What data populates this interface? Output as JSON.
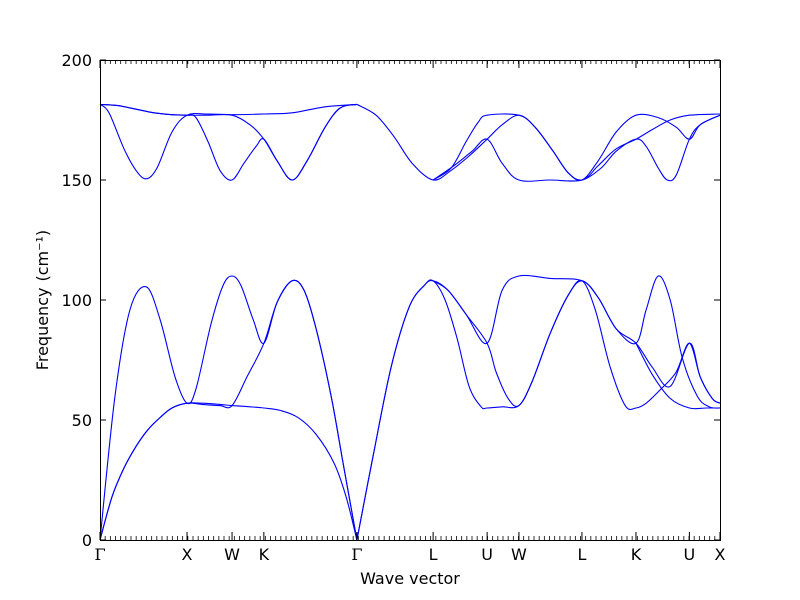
{
  "chart_data": {
    "type": "line",
    "title": "",
    "xlabel": "Wave vector",
    "ylabel": "Frequency",
    "ylabel_unit": "(cm⁻¹)",
    "ylim": [
      0,
      200
    ],
    "yticks": [
      0,
      50,
      100,
      150,
      200
    ],
    "grid": false,
    "line_color": "#0000ff",
    "xlim": [
      0,
      10.33
    ],
    "high_symmetry_points": [
      {
        "label": "Γ",
        "x": 0
      },
      {
        "label": "X",
        "x": 1.45
      },
      {
        "label": "W",
        "x": 2.2
      },
      {
        "label": "K",
        "x": 2.73
      },
      {
        "label": "Γ",
        "x": 4.28
      },
      {
        "label": "L",
        "x": 5.55
      },
      {
        "label": "U",
        "x": 6.45
      },
      {
        "label": "W",
        "x": 6.98
      },
      {
        "label": "L",
        "x": 8.03
      },
      {
        "label": "K",
        "x": 8.93
      },
      {
        "label": "U",
        "x": 9.82
      },
      {
        "label": "X",
        "x": 10.33
      }
    ],
    "series": [
      {
        "points": [
          [
            0,
            0
          ],
          [
            0.2,
            18
          ],
          [
            0.4,
            30
          ],
          [
            0.6,
            39
          ],
          [
            0.8,
            46
          ],
          [
            1.0,
            51
          ],
          [
            1.2,
            55
          ],
          [
            1.45,
            57
          ],
          [
            1.7,
            57
          ],
          [
            2.0,
            56.5
          ],
          [
            2.2,
            56
          ],
          [
            2.5,
            55.5
          ],
          [
            2.73,
            55
          ],
          [
            3.0,
            54
          ],
          [
            3.3,
            51
          ],
          [
            3.6,
            44
          ],
          [
            3.9,
            32
          ],
          [
            4.1,
            18
          ],
          [
            4.28,
            0
          ]
        ]
      },
      {
        "points": [
          [
            0,
            0
          ],
          [
            0.2,
            18
          ],
          [
            0.4,
            30
          ],
          [
            0.6,
            39
          ],
          [
            0.8,
            46
          ],
          [
            1.0,
            51
          ],
          [
            1.2,
            55
          ],
          [
            1.45,
            57
          ],
          [
            1.7,
            56.5
          ],
          [
            2.0,
            56
          ],
          [
            2.2,
            56
          ],
          [
            2.45,
            68
          ],
          [
            2.73,
            82
          ],
          [
            2.95,
            99
          ],
          [
            3.2,
            108
          ],
          [
            3.4,
            104
          ],
          [
            3.6,
            88
          ],
          [
            3.85,
            60
          ],
          [
            4.05,
            32
          ],
          [
            4.28,
            0
          ]
        ]
      },
      {
        "points": [
          [
            0,
            0
          ],
          [
            0.25,
            60
          ],
          [
            0.5,
            96
          ],
          [
            0.77,
            105.5
          ],
          [
            1.0,
            92
          ],
          [
            1.25,
            68
          ],
          [
            1.45,
            57
          ],
          [
            1.6,
            63
          ],
          [
            1.85,
            90
          ],
          [
            2.05,
            106
          ],
          [
            2.2,
            110
          ],
          [
            2.35,
            106
          ],
          [
            2.55,
            92
          ],
          [
            2.73,
            82
          ],
          [
            2.95,
            99
          ],
          [
            3.2,
            108
          ],
          [
            3.4,
            104
          ],
          [
            3.6,
            88
          ],
          [
            3.85,
            60
          ],
          [
            4.05,
            32
          ],
          [
            4.28,
            0
          ]
        ]
      },
      {
        "points": [
          [
            4.28,
            0
          ],
          [
            4.55,
            35
          ],
          [
            4.85,
            72
          ],
          [
            5.15,
            97
          ],
          [
            5.4,
            106
          ],
          [
            5.55,
            108
          ],
          [
            5.8,
            104
          ],
          [
            6.1,
            94
          ],
          [
            6.45,
            82
          ],
          [
            6.6,
            70
          ],
          [
            6.8,
            59
          ],
          [
            6.98,
            56
          ],
          [
            7.2,
            66
          ],
          [
            7.5,
            86
          ],
          [
            7.8,
            102
          ],
          [
            8.03,
            108
          ],
          [
            8.3,
            101
          ],
          [
            8.6,
            88
          ],
          [
            8.93,
            82
          ],
          [
            9.2,
            72
          ],
          [
            9.5,
            64
          ],
          [
            9.82,
            82
          ],
          [
            10.0,
            68
          ],
          [
            10.2,
            59
          ],
          [
            10.33,
            57
          ]
        ]
      },
      {
        "points": [
          [
            4.28,
            0
          ],
          [
            4.55,
            35
          ],
          [
            4.85,
            72
          ],
          [
            5.15,
            97
          ],
          [
            5.4,
            106
          ],
          [
            5.55,
            108
          ],
          [
            5.75,
            100
          ],
          [
            5.95,
            84
          ],
          [
            6.15,
            64
          ],
          [
            6.35,
            55.5
          ],
          [
            6.45,
            55
          ],
          [
            6.7,
            55.5
          ],
          [
            6.98,
            56
          ],
          [
            7.2,
            66
          ],
          [
            7.5,
            86
          ],
          [
            7.8,
            102
          ],
          [
            8.03,
            108
          ],
          [
            8.25,
            96
          ],
          [
            8.5,
            72
          ],
          [
            8.75,
            56
          ],
          [
            8.93,
            55
          ],
          [
            9.1,
            57
          ],
          [
            9.35,
            63
          ],
          [
            9.6,
            70
          ],
          [
            9.82,
            82
          ],
          [
            10.0,
            68
          ],
          [
            10.2,
            59
          ],
          [
            10.33,
            57
          ]
        ]
      },
      {
        "points": [
          [
            5.55,
            108
          ],
          [
            5.8,
            104
          ],
          [
            6.1,
            94
          ],
          [
            6.45,
            82
          ],
          [
            6.7,
            104
          ],
          [
            6.98,
            110
          ],
          [
            7.5,
            109
          ],
          [
            8.03,
            108
          ],
          [
            8.3,
            101
          ],
          [
            8.6,
            88
          ],
          [
            8.93,
            82
          ],
          [
            9.1,
            96
          ],
          [
            9.3,
            110
          ],
          [
            9.5,
            100
          ],
          [
            9.7,
            76
          ],
          [
            9.95,
            60
          ],
          [
            10.15,
            55.5
          ],
          [
            10.33,
            55
          ]
        ]
      },
      {
        "points": [
          [
            8.93,
            82
          ],
          [
            9.2,
            69
          ],
          [
            9.5,
            59
          ],
          [
            9.82,
            55
          ],
          [
            10.1,
            55
          ],
          [
            10.33,
            55
          ]
        ]
      },
      {
        "points": [
          [
            0,
            181.5
          ],
          [
            0.3,
            181
          ],
          [
            0.6,
            179.5
          ],
          [
            0.9,
            178
          ],
          [
            1.2,
            177.2
          ],
          [
            1.45,
            177
          ],
          [
            1.8,
            177
          ],
          [
            2.2,
            177
          ],
          [
            2.5,
            173
          ],
          [
            2.73,
            167
          ],
          [
            2.95,
            158
          ],
          [
            3.2,
            150
          ],
          [
            3.45,
            158
          ],
          [
            3.75,
            172
          ],
          [
            4.0,
            180
          ],
          [
            4.28,
            181.5
          ]
        ]
      },
      {
        "points": [
          [
            0,
            181.5
          ],
          [
            0.3,
            181
          ],
          [
            0.6,
            179.5
          ],
          [
            0.9,
            178
          ],
          [
            1.2,
            177.2
          ],
          [
            1.45,
            177
          ],
          [
            1.6,
            176
          ],
          [
            1.8,
            166
          ],
          [
            2.0,
            154
          ],
          [
            2.2,
            150
          ],
          [
            2.4,
            157
          ],
          [
            2.6,
            164
          ],
          [
            2.73,
            167
          ],
          [
            2.95,
            158
          ],
          [
            3.2,
            150
          ],
          [
            3.45,
            158
          ],
          [
            3.75,
            172
          ],
          [
            4.0,
            180
          ],
          [
            4.28,
            181.5
          ]
        ]
      },
      {
        "points": [
          [
            0,
            181.5
          ],
          [
            0.15,
            178
          ],
          [
            0.4,
            163
          ],
          [
            0.6,
            154
          ],
          [
            0.77,
            150.5
          ],
          [
            0.95,
            155
          ],
          [
            1.2,
            170
          ],
          [
            1.45,
            177
          ],
          [
            1.8,
            177.5
          ],
          [
            2.2,
            177.2
          ],
          [
            2.73,
            177.5
          ],
          [
            3.2,
            178
          ],
          [
            3.75,
            180.5
          ],
          [
            4.28,
            181.5
          ]
        ]
      },
      {
        "points": [
          [
            4.28,
            181.5
          ],
          [
            4.6,
            177
          ],
          [
            4.9,
            168
          ],
          [
            5.2,
            157
          ],
          [
            5.55,
            150
          ],
          [
            5.85,
            154
          ],
          [
            6.15,
            160
          ],
          [
            6.45,
            167
          ],
          [
            6.7,
            173
          ],
          [
            6.98,
            177
          ],
          [
            7.25,
            172
          ],
          [
            7.55,
            162
          ],
          [
            7.8,
            153
          ],
          [
            8.03,
            150
          ],
          [
            8.35,
            155
          ],
          [
            8.6,
            162
          ],
          [
            8.93,
            167
          ],
          [
            9.1,
            164
          ],
          [
            9.3,
            155
          ],
          [
            9.45,
            150
          ],
          [
            9.6,
            152
          ],
          [
            9.82,
            167
          ],
          [
            10.0,
            173
          ],
          [
            10.33,
            177
          ]
        ]
      },
      {
        "points": [
          [
            5.55,
            150
          ],
          [
            5.85,
            155
          ],
          [
            6.1,
            166
          ],
          [
            6.3,
            174
          ],
          [
            6.45,
            177
          ],
          [
            6.98,
            177
          ],
          [
            7.25,
            172
          ],
          [
            7.55,
            162
          ],
          [
            7.8,
            153
          ],
          [
            8.03,
            150
          ],
          [
            8.3,
            158
          ],
          [
            8.6,
            170
          ],
          [
            8.93,
            177
          ],
          [
            9.3,
            176
          ],
          [
            9.6,
            172
          ],
          [
            9.82,
            167
          ],
          [
            10.0,
            173
          ],
          [
            10.33,
            177
          ]
        ]
      },
      {
        "points": [
          [
            5.55,
            150
          ],
          [
            5.9,
            156
          ],
          [
            6.2,
            162
          ],
          [
            6.45,
            167
          ],
          [
            6.7,
            157
          ],
          [
            6.98,
            150
          ],
          [
            7.5,
            150
          ],
          [
            8.03,
            150
          ],
          [
            8.3,
            156
          ],
          [
            8.6,
            163
          ],
          [
            8.93,
            167
          ],
          [
            9.2,
            171
          ],
          [
            9.5,
            175
          ],
          [
            9.82,
            177
          ],
          [
            10.33,
            177.5
          ]
        ]
      }
    ]
  }
}
